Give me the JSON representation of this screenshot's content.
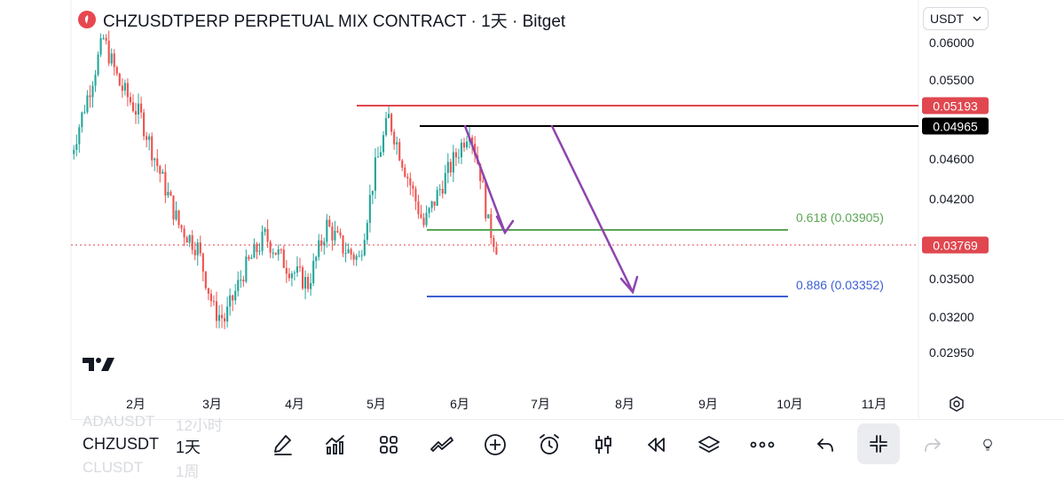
{
  "header": {
    "title": "CHZUSDTPERP PERPETUAL MIX CONTRACT · 1天 · Bitget",
    "currency": "USDT"
  },
  "price_axis": {
    "ticks": [
      "0.06000",
      "0.05500",
      "0.04600",
      "0.04200",
      "0.03500",
      "0.03200",
      "0.02950"
    ]
  },
  "price_badges": {
    "resistance_red": "0.05193",
    "resistance_black": "0.04965",
    "current": "0.03769"
  },
  "fib_levels": {
    "level_618": "0.618 (0.03905)",
    "level_886": "0.886 (0.03352)"
  },
  "time_axis": {
    "months": [
      "2月",
      "3月",
      "4月",
      "5月",
      "6月",
      "7月",
      "8月",
      "9月",
      "10月",
      "11月"
    ]
  },
  "bottom_bar": {
    "symbol": "CHZUSDT",
    "interval": "1天",
    "ghost_above_symbol": "ADAUSDT",
    "ghost_above_interval": "12小时",
    "ghost_below_symbol": "CLUSDT",
    "ghost_below_interval": "1周"
  },
  "colors": {
    "up": "#26a69a",
    "down": "#ef5350",
    "red_line": "#e0474f",
    "black_line": "#000000",
    "green_line": "#5ba654",
    "blue_line": "#3c5fd3",
    "arrow": "#8e44ad"
  },
  "icons": [
    "drawing-pen-icon",
    "indicators-icon",
    "layouts-icon",
    "strategy-icon",
    "add-icon",
    "alert-clock-icon",
    "candle-type-icon",
    "replay-icon",
    "layers-icon",
    "more-icon",
    "undo-icon",
    "collapse-icon",
    "redo-icon",
    "ideas-icon",
    "settings-icon"
  ],
  "chart_data": {
    "type": "candlestick",
    "title": "CHZUSDTPERP PERPETUAL MIX CONTRACT · 1天 · Bitget",
    "x_axis_months": [
      "2月",
      "3月",
      "4月",
      "5月",
      "6月",
      "7月",
      "8月",
      "9月",
      "10月",
      "11月"
    ],
    "y_axis_ticks": [
      0.06,
      0.055,
      0.046,
      0.042,
      0.035,
      0.032,
      0.0295
    ],
    "y_scale": "log",
    "current_price": 0.03769,
    "horizontal_levels": [
      {
        "label": "0.05193",
        "price": 0.05193,
        "color": "red"
      },
      {
        "label": "0.04965",
        "price": 0.04965,
        "color": "black"
      },
      {
        "label": "0.618 (0.03905)",
        "price": 0.03905,
        "color": "green"
      },
      {
        "label": "0.886 (0.03352)",
        "price": 0.03352,
        "color": "blue"
      }
    ],
    "arrows": [
      {
        "from_date": "2024-06-01",
        "from_price": 0.04965,
        "to_date": "2024-06-28",
        "to_price": 0.03905
      },
      {
        "from_date": "2024-07-12",
        "from_price": 0.04965,
        "to_date": "2024-08-12",
        "to_price": 0.03352
      }
    ],
    "price_path": [
      {
        "date": "2024-01-08",
        "price": 0.0465
      },
      {
        "date": "2024-01-14",
        "price": 0.053
      },
      {
        "date": "2024-01-20",
        "price": 0.0605
      },
      {
        "date": "2024-01-26",
        "price": 0.0545
      },
      {
        "date": "2024-02-03",
        "price": 0.0505
      },
      {
        "date": "2024-02-10",
        "price": 0.0445
      },
      {
        "date": "2024-02-17",
        "price": 0.0395
      },
      {
        "date": "2024-02-24",
        "price": 0.0375
      },
      {
        "date": "2024-03-01",
        "price": 0.0325
      },
      {
        "date": "2024-03-05",
        "price": 0.0318
      },
      {
        "date": "2024-03-12",
        "price": 0.0355
      },
      {
        "date": "2024-03-20",
        "price": 0.0385
      },
      {
        "date": "2024-03-28",
        "price": 0.036
      },
      {
        "date": "2024-04-05",
        "price": 0.0345
      },
      {
        "date": "2024-04-12",
        "price": 0.0395
      },
      {
        "date": "2024-04-18",
        "price": 0.0375
      },
      {
        "date": "2024-04-24",
        "price": 0.0365
      },
      {
        "date": "2024-04-30",
        "price": 0.045
      },
      {
        "date": "2024-05-05",
        "price": 0.0505
      },
      {
        "date": "2024-05-11",
        "price": 0.045
      },
      {
        "date": "2024-05-18",
        "price": 0.0395
      },
      {
        "date": "2024-05-25",
        "price": 0.0435
      },
      {
        "date": "2024-06-01",
        "price": 0.0475
      },
      {
        "date": "2024-06-04",
        "price": 0.0495
      },
      {
        "date": "2024-06-08",
        "price": 0.0445
      },
      {
        "date": "2024-06-11",
        "price": 0.0395
      },
      {
        "date": "2024-06-14",
        "price": 0.03769
      }
    ]
  }
}
